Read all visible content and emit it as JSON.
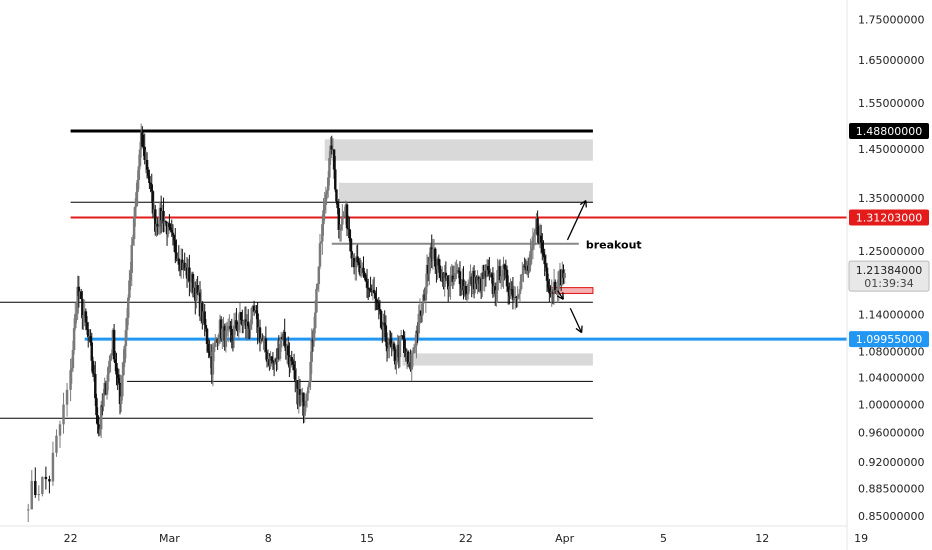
{
  "chart_data": {
    "type": "candlestick",
    "y_ticks": [
      "1.75000000",
      "1.65000000",
      "1.55000000",
      "1.45000000",
      "1.35000000",
      "1.25000000",
      "1.14000000",
      "1.08000000",
      "1.04000000",
      "1.00000000",
      "0.96000000",
      "0.92000000",
      "0.88500000",
      "0.85000000"
    ],
    "x_ticks": [
      "22",
      "Mar",
      "8",
      "15",
      "22",
      "Apr",
      "5",
      "12",
      "19"
    ],
    "levels": [
      {
        "name": "resistance-top",
        "value": "1.48800000",
        "color": "#000000",
        "badge_bg": "#000000"
      },
      {
        "name": "resistance-red",
        "value": "1.31203000",
        "color": "#e31b1b",
        "badge_bg": "#e31b1b"
      },
      {
        "name": "support-blue",
        "value": "1.09955000",
        "color": "#2196f3",
        "badge_bg": "#2196f3"
      }
    ],
    "current_price": {
      "value": "1.21384000",
      "countdown": "01:39:34"
    },
    "annotations": [
      {
        "text": "breakout"
      }
    ],
    "price_path": [
      [
        0.0,
        0.876
      ],
      [
        1.5,
        0.9
      ],
      [
        3.0,
        1.04
      ],
      [
        3.5,
        1.18
      ],
      [
        4.0,
        1.13
      ],
      [
        4.5,
        1.07
      ],
      [
        5.0,
        0.96
      ],
      [
        5.5,
        1.03
      ],
      [
        6.0,
        1.1
      ],
      [
        6.5,
        1.0
      ],
      [
        7.0,
        1.14
      ],
      [
        7.5,
        1.3
      ],
      [
        8.0,
        1.47
      ],
      [
        8.5,
        1.4
      ],
      [
        9.0,
        1.3
      ],
      [
        9.5,
        1.32
      ],
      [
        10.0,
        1.28
      ],
      [
        10.5,
        1.25
      ],
      [
        11.0,
        1.22
      ],
      [
        11.5,
        1.2
      ],
      [
        12.0,
        1.17
      ],
      [
        12.5,
        1.12
      ],
      [
        13.0,
        1.06
      ],
      [
        13.5,
        1.12
      ],
      [
        14.0,
        1.1
      ],
      [
        14.5,
        1.11
      ],
      [
        15.0,
        1.13
      ],
      [
        15.5,
        1.12
      ],
      [
        16.0,
        1.14
      ],
      [
        16.5,
        1.1
      ],
      [
        17.0,
        1.07
      ],
      [
        17.5,
        1.06
      ],
      [
        18.0,
        1.11
      ],
      [
        18.5,
        1.07
      ],
      [
        19.0,
        1.02
      ],
      [
        19.5,
        1.0
      ],
      [
        20.0,
        1.06
      ],
      [
        20.5,
        1.2
      ],
      [
        21.0,
        1.34
      ],
      [
        21.5,
        1.46
      ],
      [
        22.0,
        1.3
      ],
      [
        22.5,
        1.32
      ],
      [
        23.0,
        1.24
      ],
      [
        23.5,
        1.21
      ],
      [
        24.0,
        1.19
      ],
      [
        24.5,
        1.17
      ],
      [
        25.0,
        1.12
      ],
      [
        25.5,
        1.09
      ],
      [
        26.0,
        1.07
      ],
      [
        26.5,
        1.1
      ],
      [
        27.0,
        1.05
      ],
      [
        27.5,
        1.11
      ],
      [
        28.0,
        1.16
      ],
      [
        28.5,
        1.26
      ],
      [
        29.0,
        1.22
      ],
      [
        29.5,
        1.2
      ],
      [
        30.0,
        1.19
      ],
      [
        30.5,
        1.21
      ],
      [
        31.0,
        1.18
      ],
      [
        31.5,
        1.2
      ],
      [
        32.0,
        1.19
      ],
      [
        32.5,
        1.21
      ],
      [
        33.0,
        1.18
      ],
      [
        33.5,
        1.22
      ],
      [
        34.0,
        1.19
      ],
      [
        34.5,
        1.17
      ],
      [
        35.0,
        1.21
      ],
      [
        35.5,
        1.22
      ],
      [
        36.0,
        1.3
      ],
      [
        36.5,
        1.24
      ],
      [
        37.0,
        1.18
      ],
      [
        37.5,
        1.2
      ],
      [
        38.0,
        1.21
      ]
    ],
    "price_noise": 0.035,
    "y_scale": "log",
    "ylim": [
      0.838,
      1.8
    ],
    "xlim": [
      -2.0,
      58.0
    ],
    "x_tick_values": [
      3,
      10,
      17,
      24,
      31,
      38,
      45,
      52,
      59
    ],
    "zones": [
      {
        "x": [
          21.0,
          40.0
        ],
        "y": [
          1.425,
          1.47
        ],
        "color": "#d9d9d9"
      },
      {
        "x": [
          22.0,
          40.0
        ],
        "y": [
          1.34,
          1.38
        ],
        "color": "#d9d9d9"
      },
      {
        "x": [
          26.5,
          40.0
        ],
        "y": [
          1.058,
          1.077
        ],
        "color": "#d9d9d9"
      },
      {
        "x": [
          37.0,
          40.0
        ],
        "y": [
          1.175,
          1.185
        ],
        "color": "#f4b0b0"
      }
    ],
    "hlines": [
      {
        "x": [
          3.0,
          40.0
        ],
        "y": 1.488,
        "color": "#000000",
        "width": 3
      },
      {
        "x": [
          3.0,
          40.0
        ],
        "y": 1.3415,
        "color": "#000000",
        "width": 1
      },
      {
        "x": [
          3.0,
          58.0
        ],
        "y": 1.31203,
        "color": "#e31b1b",
        "width": 2
      },
      {
        "x": [
          21.5,
          39.0
        ],
        "y": 1.263,
        "color": "#888888",
        "width": 2
      },
      {
        "x": [
          -2.0,
          40.0
        ],
        "y": 1.16,
        "color": "#000000",
        "width": 1
      },
      {
        "x": [
          4.0,
          58.0
        ],
        "y": 1.09955,
        "color": "#2196f3",
        "width": 3
      },
      {
        "x": [
          7.0,
          40.0
        ],
        "y": 1.034,
        "color": "#000000",
        "width": 1
      },
      {
        "x": [
          -2.0,
          40.0
        ],
        "y": 0.98,
        "color": "#000000",
        "width": 1
      }
    ],
    "arrows": [
      {
        "from": [
          38.2,
          1.27
        ],
        "to": [
          39.5,
          1.345
        ]
      },
      {
        "from": [
          38.4,
          1.15
        ],
        "to": [
          39.2,
          1.11
        ]
      },
      {
        "from": [
          37.5,
          1.18
        ],
        "to": [
          37.9,
          1.165
        ]
      }
    ],
    "annotation_point": [
      39.5,
      1.262
    ],
    "up_color": "#7a7a7a",
    "down_color": "#111111"
  }
}
